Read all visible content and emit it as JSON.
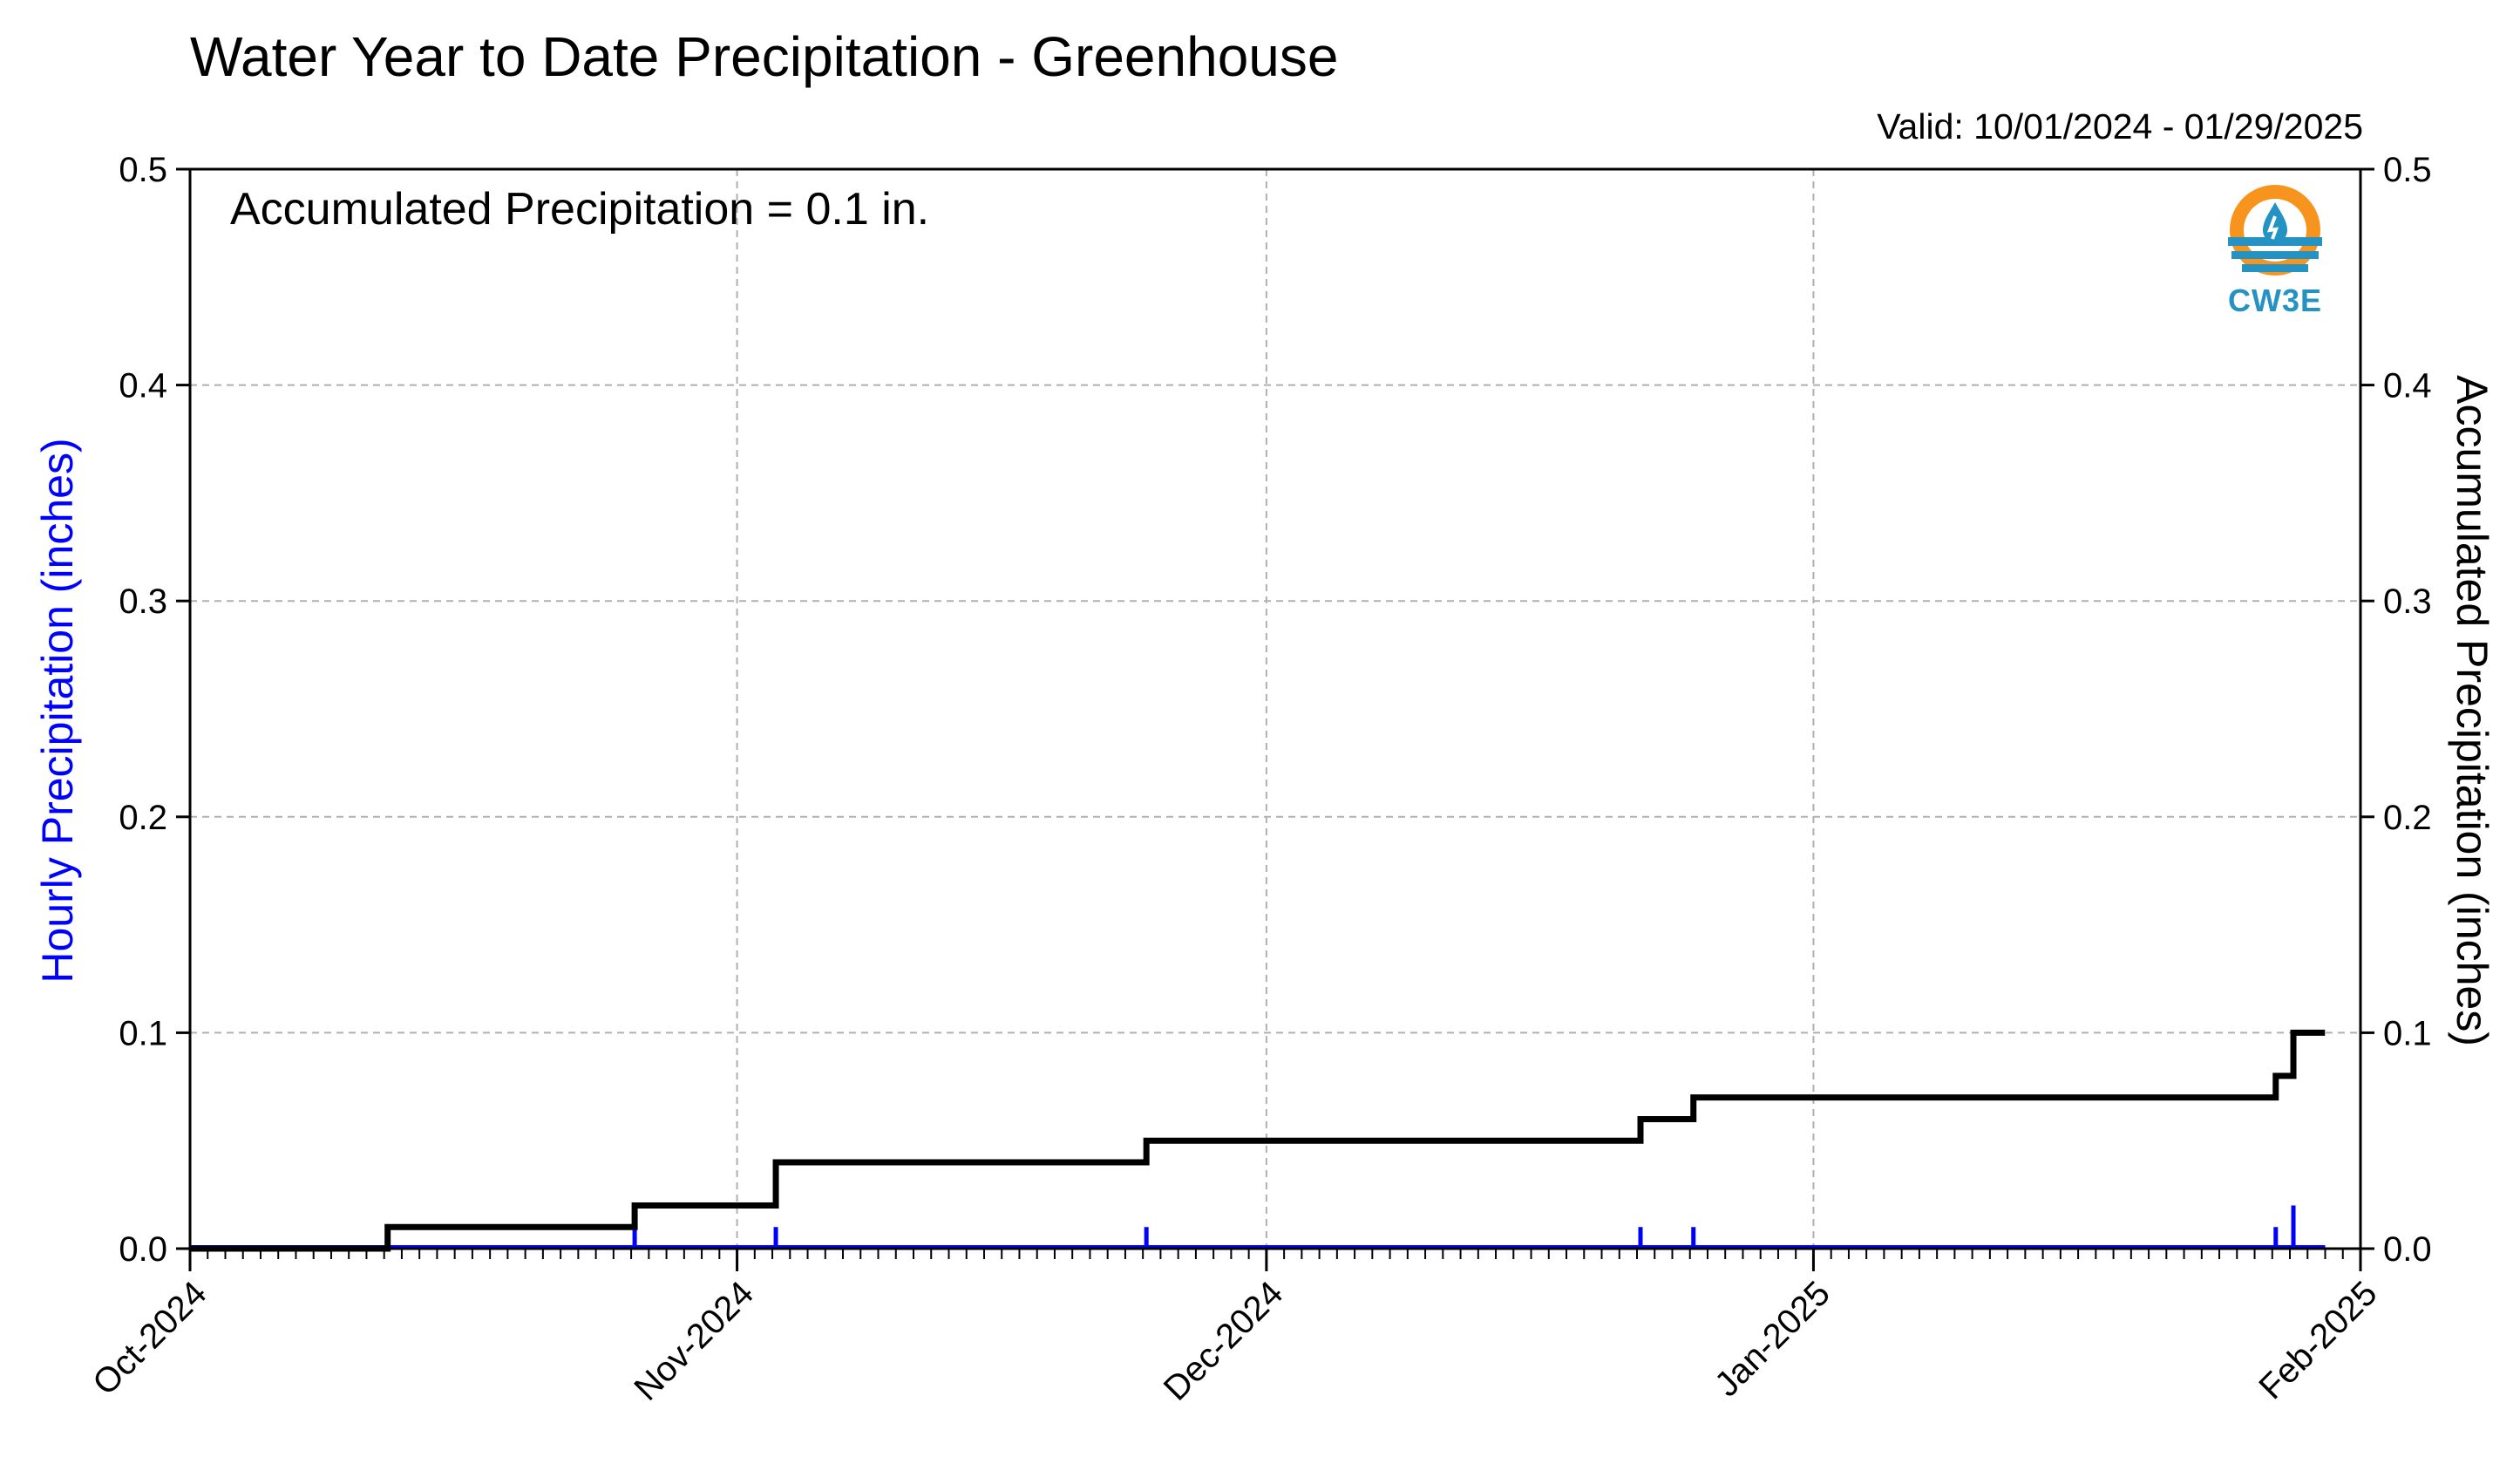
{
  "header": {
    "title": "Water Year to Date Precipitation - Greenhouse",
    "valid": "Valid: 10/01/2024 - 01/29/2025",
    "accumulated_text": "Accumulated Precipitation = 0.1 in.",
    "logo_text": "CW3E"
  },
  "chart_data": {
    "type": "bar",
    "secondary_type": "line",
    "title": "Water Year to Date Precipitation - Greenhouse",
    "ylabel": "Hourly Precipitation (inches)",
    "ylabel_right": "Accumulated Precipitation (inches)",
    "xlim": [
      "2024-10-01",
      "2025-02-01"
    ],
    "ylim": [
      0,
      0.5
    ],
    "ylim_right": [
      0,
      0.5
    ],
    "yticks": [
      "0.0",
      "0.1",
      "0.2",
      "0.3",
      "0.4",
      "0.5"
    ],
    "xticks": [
      {
        "date": "2024-10-01",
        "label": "Oct-2024"
      },
      {
        "date": "2024-11-01",
        "label": "Nov-2024"
      },
      {
        "date": "2024-12-01",
        "label": "Dec-2024"
      },
      {
        "date": "2025-01-01",
        "label": "Jan-2025"
      },
      {
        "date": "2025-02-01",
        "label": "Feb-2025"
      }
    ],
    "grid": true,
    "series": [
      {
        "name": "Hourly Precipitation",
        "color": "#0000ff",
        "dates": [
          "2024-10-12",
          "2024-10-26",
          "2024-11-03",
          "2024-11-24",
          "2024-12-22",
          "2024-12-25",
          "2025-01-27",
          "2025-01-28"
        ],
        "values": [
          0.01,
          0.01,
          0.01,
          0.01,
          0.01,
          0.01,
          0.01,
          0.02
        ]
      },
      {
        "name": "Accumulated Precipitation",
        "color": "#000000",
        "dates": [
          "2024-10-01",
          "2024-10-12",
          "2024-10-26",
          "2024-11-03",
          "2024-11-24",
          "2024-12-22",
          "2024-12-25",
          "2025-01-27",
          "2025-01-28",
          "2025-01-29"
        ],
        "values": [
          0.0,
          0.01,
          0.02,
          0.04,
          0.05,
          0.06,
          0.07,
          0.08,
          0.1,
          0.1
        ]
      }
    ]
  },
  "colors": {
    "hourly": "#0000ff",
    "accumulated": "#000000",
    "grid": "#b0b0b0",
    "logo_orange": "#f7941d",
    "logo_blue": "#2493c4"
  }
}
